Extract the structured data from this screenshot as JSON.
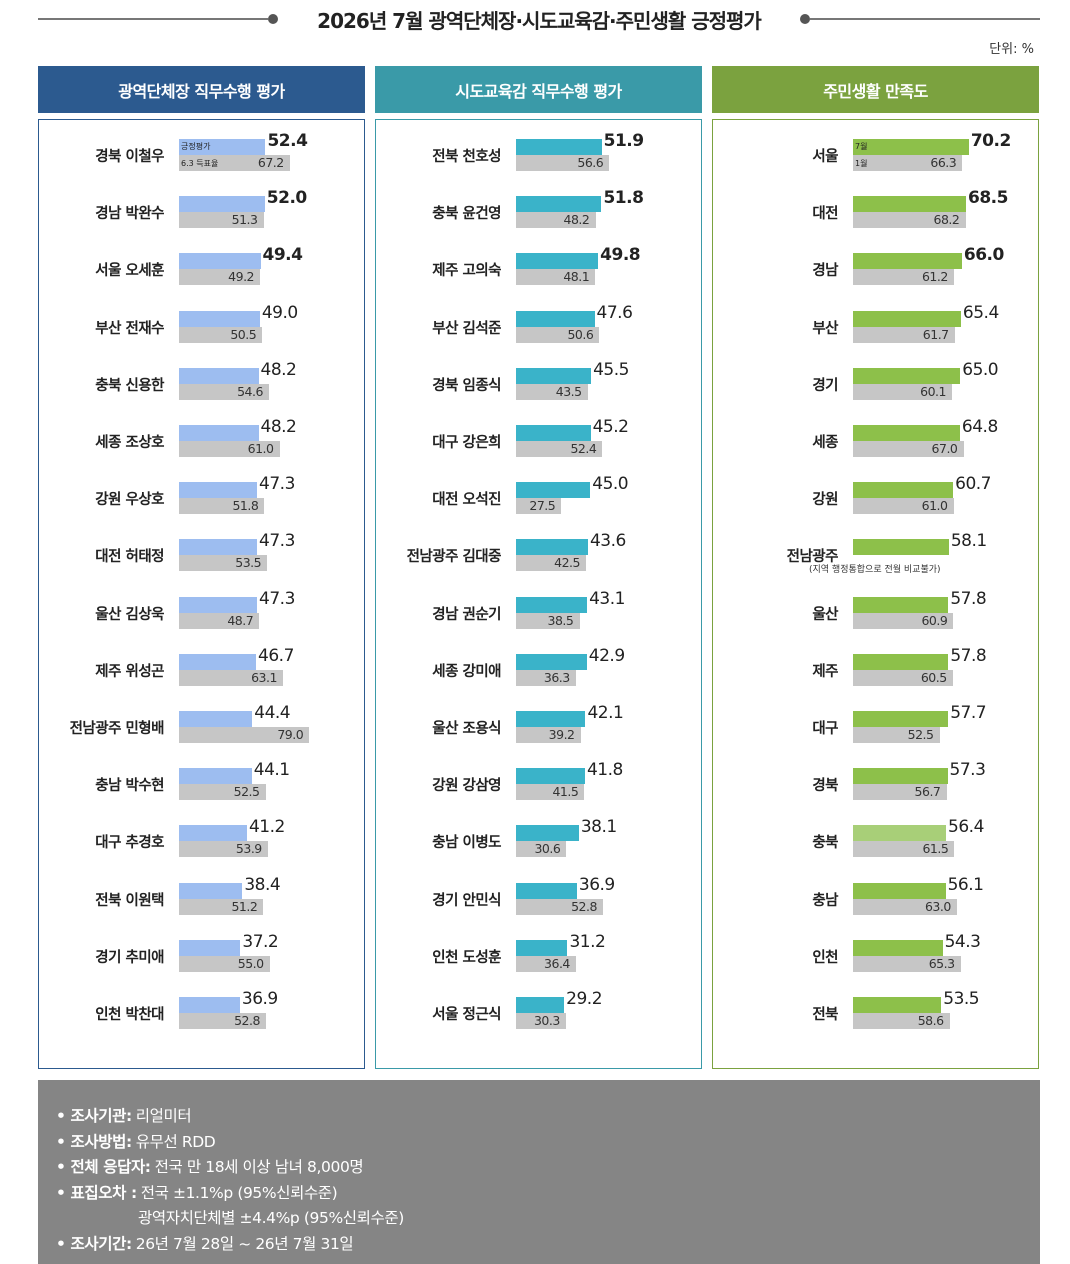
{
  "title": "2026년 7월 광역단체장·시도교육감·주민생활 긍정평가",
  "unit": "단위: %",
  "chart_data": [
    {
      "type": "bar",
      "title": "광역단체장 직무수행 평가",
      "header_color": "#2c5a8f",
      "bar_color": "#9dbdf0",
      "legend": {
        "current": "긍정평가",
        "previous": "6.3 득표율"
      },
      "categories": [
        "경북 이철우",
        "경남 박완수",
        "서울 오세훈",
        "부산 전재수",
        "충북 신용한",
        "세종 조상호",
        "강원 우상호",
        "대전 허태정",
        "울산 김상욱",
        "제주 위성곤",
        "전남광주 민형배",
        "충남 박수현",
        "대구 추경호",
        "전북 이원택",
        "경기 추미애",
        "인천 박찬대"
      ],
      "series": [
        {
          "name": "긍정평가",
          "values": [
            52.4,
            52.0,
            49.4,
            49.0,
            48.2,
            48.2,
            47.3,
            47.3,
            47.3,
            46.7,
            44.4,
            44.1,
            41.2,
            38.4,
            37.2,
            36.9
          ]
        },
        {
          "name": "6.3 득표율",
          "values": [
            67.2,
            51.3,
            49.2,
            50.5,
            54.6,
            61.0,
            51.8,
            53.5,
            48.7,
            63.1,
            79.0,
            52.5,
            53.9,
            51.2,
            55.0,
            52.8
          ]
        }
      ],
      "bold_top": 3
    },
    {
      "type": "bar",
      "title": "시도교육감 직무수행 평가",
      "header_color": "#3a9aa8",
      "bar_color": "#3ab3c9",
      "categories": [
        "전북 천호성",
        "충북 윤건영",
        "제주 고의숙",
        "부산 김석준",
        "경북 임종식",
        "대구 강은희",
        "대전 오석진",
        "전남광주 김대중",
        "경남 권순기",
        "세종 강미애",
        "울산 조용식",
        "강원 강삼영",
        "충남 이병도",
        "경기 안민식",
        "인천 도성훈",
        "서울 정근식"
      ],
      "series": [
        {
          "name": "current",
          "values": [
            51.9,
            51.8,
            49.8,
            47.6,
            45.5,
            45.2,
            45.0,
            43.6,
            43.1,
            42.9,
            42.1,
            41.8,
            38.1,
            36.9,
            31.2,
            29.2
          ]
        },
        {
          "name": "previous",
          "values": [
            56.6,
            48.2,
            48.1,
            50.6,
            43.5,
            52.4,
            27.5,
            42.5,
            38.5,
            36.3,
            39.2,
            41.5,
            30.6,
            52.8,
            36.4,
            30.3
          ]
        }
      ],
      "bold_top": 3
    },
    {
      "type": "bar",
      "title": "주민생활 만족도",
      "header_color": "#7ba23f",
      "bar_color": "#8dc04a",
      "legend": {
        "current": "7월",
        "previous": "1월"
      },
      "categories": [
        "서울",
        "대전",
        "경남",
        "부산",
        "경기",
        "세종",
        "강원",
        "전남광주",
        "울산",
        "제주",
        "대구",
        "경북",
        "충북",
        "충남",
        "인천",
        "전북"
      ],
      "series": [
        {
          "name": "7월",
          "values": [
            70.2,
            68.5,
            66.0,
            65.4,
            65.0,
            64.8,
            60.7,
            58.1,
            57.8,
            57.8,
            57.7,
            57.3,
            56.4,
            56.1,
            54.3,
            53.5
          ]
        },
        {
          "name": "1월",
          "values": [
            66.3,
            68.2,
            61.2,
            61.7,
            60.1,
            67.0,
            61.0,
            null,
            60.9,
            60.5,
            52.5,
            56.7,
            61.5,
            63.0,
            65.3,
            58.6
          ]
        }
      ],
      "note": "(지역 행정통합으로 전월 비교불가)",
      "bold_top": 3
    }
  ],
  "footer": [
    {
      "label": "조사기관:",
      "text": "리얼미터"
    },
    {
      "label": "조사방법:",
      "text": "유무선 RDD"
    },
    {
      "label": "전체 응답자:",
      "text": "전국 만 18세 이상 남녀 8,000명"
    },
    {
      "label": "표집오차 :",
      "text": "전국 ±1.1%p (95%신뢰수준)"
    },
    {
      "label": "",
      "text": "광역자치단체별 ±4.4%p (95%신뢰수준)"
    },
    {
      "label": "조사기간:",
      "text": "26년 7월 28일 ~ 26년 7월 31일"
    }
  ]
}
